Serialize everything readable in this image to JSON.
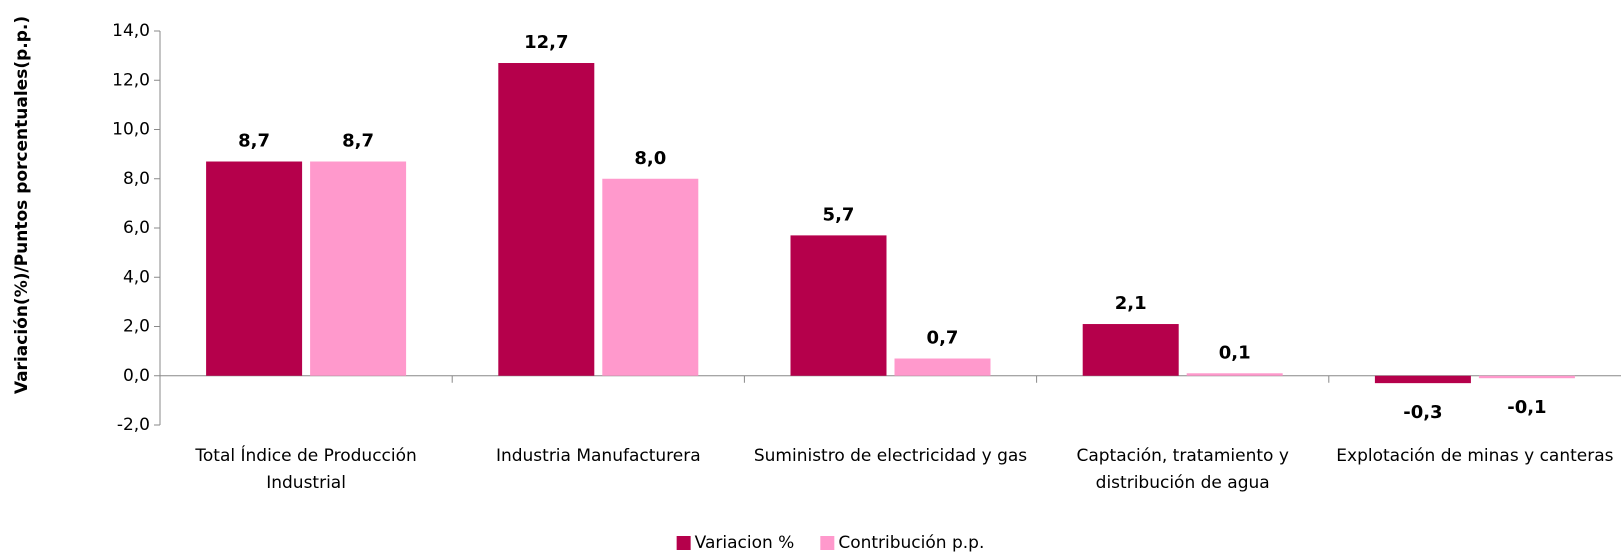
{
  "chart_data": {
    "type": "bar",
    "y_label": "Variación(%)/Puntos porcentuales(p.p.)",
    "categories": [
      "Total Índice de Producción Industrial",
      "Industria Manufacturera",
      "Suministro de electricidad y gas",
      "Captación, tratamiento y distribución de agua",
      "Explotación de minas y canteras"
    ],
    "series": [
      {
        "name": "Variacion %",
        "color": "#b5004b",
        "values": [
          8.7,
          12.7,
          5.7,
          2.1,
          -0.3
        ],
        "value_labels": [
          "8,7",
          "12,7",
          "5,7",
          "2,1",
          "-0,3"
        ]
      },
      {
        "name": "Contribución p.p.",
        "color": "#ff99cc",
        "values": [
          8.7,
          8.0,
          0.7,
          0.1,
          -0.1
        ],
        "value_labels": [
          "8,7",
          "8,0",
          "0,7",
          "0,1",
          "-0,1"
        ]
      }
    ],
    "ylim": [
      -2,
      14
    ],
    "yticks": [
      {
        "value": -2,
        "label": "-2,0"
      },
      {
        "value": 0,
        "label": "0,0"
      },
      {
        "value": 2,
        "label": "2,0"
      },
      {
        "value": 4,
        "label": "4,0"
      },
      {
        "value": 6,
        "label": "6,0"
      },
      {
        "value": 8,
        "label": "8,0"
      },
      {
        "value": 10,
        "label": "10,0"
      },
      {
        "value": 12,
        "label": "12,0"
      },
      {
        "value": 14,
        "label": "14,0"
      }
    ],
    "grid": false,
    "legend": "bottom"
  }
}
